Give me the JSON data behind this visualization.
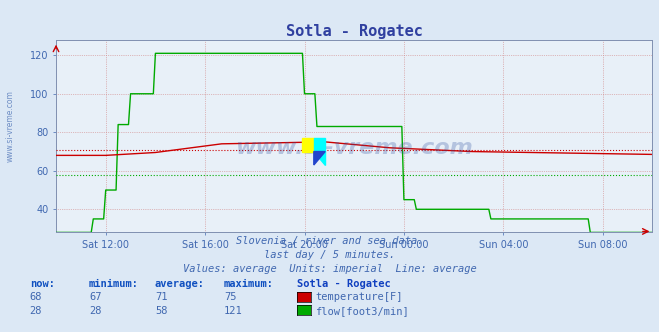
{
  "title": "Sotla - Rogatec",
  "bg_color": "#dce8f5",
  "plot_bg_color": "#e8f0f8",
  "title_color": "#3040a0",
  "label_color": "#4068b0",
  "subtitle_lines": [
    "Slovenia / river and sea data.",
    "last day / 5 minutes.",
    "Values: average  Units: imperial  Line: average"
  ],
  "xticklabels": [
    "Sat 12:00",
    "Sat 16:00",
    "Sat 20:00",
    "Sun 00:00",
    "Sun 04:00",
    "Sun 08:00"
  ],
  "yticks": [
    40,
    60,
    80,
    100,
    120
  ],
  "ymin": 28,
  "ymax": 128,
  "temp_color": "#cc0000",
  "temp_avg_value": 71,
  "flow_color": "#00aa00",
  "flow_avg_value": 58,
  "height_color": "#0000cc",
  "watermark_color": "#3050a0",
  "watermark_alpha": 0.28,
  "left_text": "www.si-vreme.com",
  "left_text_color": "#4068b0",
  "legend_title": "Sotla - Rogatec",
  "legend_title_color": "#1040c0",
  "table_header_color": "#1050c0",
  "temp_row": [
    68,
    67,
    71,
    75
  ],
  "flow_row": [
    28,
    28,
    58,
    121
  ],
  "temp_label": "temperature[F]",
  "flow_label": "flow[foot3/min]",
  "temp_swatch_color": "#cc0000",
  "flow_swatch_color": "#00aa00",
  "grid_color": "#d08080",
  "border_color": "#8090b0"
}
